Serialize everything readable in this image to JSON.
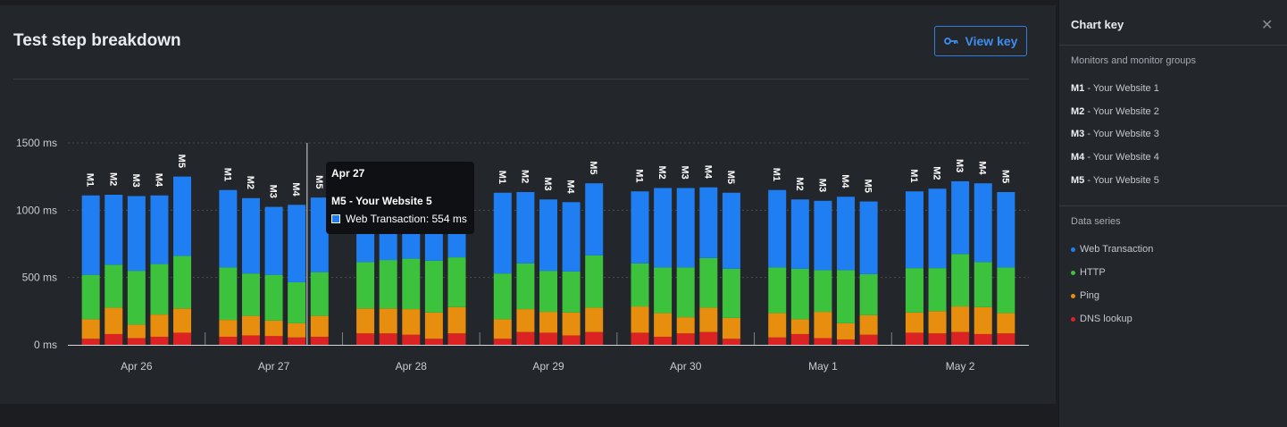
{
  "header": {
    "title": "Test step breakdown",
    "view_key_label": "View key"
  },
  "tooltip": {
    "date": "Apr 27",
    "monitor": "M5 - Your Website 5",
    "series_label": "Web Transaction: 554 ms"
  },
  "key_panel": {
    "title": "Chart key",
    "monitors_heading": "Monitors and monitor groups",
    "monitors": [
      {
        "code": "M1",
        "name": " - Your Website 1"
      },
      {
        "code": "M2",
        "name": " - Your Website 2"
      },
      {
        "code": "M3",
        "name": " - Your Website 3"
      },
      {
        "code": "M4",
        "name": " - Your Website 4"
      },
      {
        "code": "M5",
        "name": " - Your Website 5"
      }
    ],
    "series_heading": "Data series",
    "series": [
      {
        "name": "Web Transaction",
        "color": "#1f7ff2"
      },
      {
        "name": "HTTP",
        "color": "#3dc23d"
      },
      {
        "name": "Ping",
        "color": "#e88e0e"
      },
      {
        "name": "DNS lookup",
        "color": "#dc2323"
      }
    ]
  },
  "chart_data": {
    "type": "bar",
    "stacked": true,
    "ylim": [
      0,
      1500
    ],
    "y_ticks": [
      {
        "value": 0,
        "label": "0 ms"
      },
      {
        "value": 500,
        "label": "500 ms"
      },
      {
        "value": 1000,
        "label": "1000 ms"
      },
      {
        "value": 1500,
        "label": "1500 ms"
      }
    ],
    "grid": true,
    "categories": [
      "Apr 26",
      "Apr 27",
      "Apr 28",
      "Apr 29",
      "Apr 30",
      "May 1",
      "May 2"
    ],
    "monitors": [
      "M1",
      "M2",
      "M3",
      "M4",
      "M5"
    ],
    "series_colors": {
      "DNS lookup": "#dc2323",
      "Ping": "#e88e0e",
      "HTTP": "#3dc23d",
      "Web Transaction": "#1f7ff2"
    },
    "series_order": [
      "DNS lookup",
      "Ping",
      "HTTP",
      "Web Transaction"
    ],
    "groups": [
      {
        "date": "Apr 26",
        "bars": [
          {
            "monitor": "M1",
            "DNS lookup": 45,
            "Ping": 145,
            "HTTP": 330,
            "Web Transaction": 590
          },
          {
            "monitor": "M2",
            "DNS lookup": 80,
            "Ping": 195,
            "HTTP": 320,
            "Web Transaction": 520
          },
          {
            "monitor": "M3",
            "DNS lookup": 50,
            "Ping": 100,
            "HTTP": 400,
            "Web Transaction": 555
          },
          {
            "monitor": "M4",
            "DNS lookup": 60,
            "Ping": 165,
            "HTTP": 375,
            "Web Transaction": 510
          },
          {
            "monitor": "M5",
            "DNS lookup": 90,
            "Ping": 180,
            "HTTP": 390,
            "Web Transaction": 590
          }
        ]
      },
      {
        "date": "Apr 27",
        "bars": [
          {
            "monitor": "M1",
            "DNS lookup": 60,
            "Ping": 125,
            "HTTP": 390,
            "Web Transaction": 575
          },
          {
            "monitor": "M2",
            "DNS lookup": 70,
            "Ping": 145,
            "HTTP": 315,
            "Web Transaction": 560
          },
          {
            "monitor": "M3",
            "DNS lookup": 65,
            "Ping": 115,
            "HTTP": 340,
            "Web Transaction": 505
          },
          {
            "monitor": "M4",
            "DNS lookup": 55,
            "Ping": 105,
            "HTTP": 305,
            "Web Transaction": 575
          },
          {
            "monitor": "M5",
            "DNS lookup": 60,
            "Ping": 155,
            "HTTP": 325,
            "Web Transaction": 554
          }
        ]
      },
      {
        "date": "Apr 28",
        "bars": [
          {
            "monitor": "M1",
            "DNS lookup": 85,
            "Ping": 185,
            "HTTP": 345,
            "Web Transaction": 585
          },
          {
            "monitor": "M2",
            "DNS lookup": 85,
            "Ping": 185,
            "HTTP": 360,
            "Web Transaction": 570
          },
          {
            "monitor": "M3",
            "DNS lookup": 75,
            "Ping": 190,
            "HTTP": 375,
            "Web Transaction": 560
          },
          {
            "monitor": "M4",
            "DNS lookup": 45,
            "Ping": 195,
            "HTTP": 385,
            "Web Transaction": 575
          },
          {
            "monitor": "M5",
            "DNS lookup": 85,
            "Ping": 195,
            "HTTP": 370,
            "Web Transaction": 550
          }
        ]
      },
      {
        "date": "Apr 29",
        "bars": [
          {
            "monitor": "M1",
            "DNS lookup": 45,
            "Ping": 145,
            "HTTP": 340,
            "Web Transaction": 600
          },
          {
            "monitor": "M2",
            "DNS lookup": 95,
            "Ping": 170,
            "HTTP": 340,
            "Web Transaction": 530
          },
          {
            "monitor": "M3",
            "DNS lookup": 90,
            "Ping": 155,
            "HTTP": 305,
            "Web Transaction": 530
          },
          {
            "monitor": "M4",
            "DNS lookup": 70,
            "Ping": 170,
            "HTTP": 305,
            "Web Transaction": 515
          },
          {
            "monitor": "M5",
            "DNS lookup": 95,
            "Ping": 180,
            "HTTP": 390,
            "Web Transaction": 535
          }
        ]
      },
      {
        "date": "Apr 30",
        "bars": [
          {
            "monitor": "M1",
            "DNS lookup": 90,
            "Ping": 195,
            "HTTP": 320,
            "Web Transaction": 535
          },
          {
            "monitor": "M2",
            "DNS lookup": 60,
            "Ping": 175,
            "HTTP": 340,
            "Web Transaction": 590
          },
          {
            "monitor": "M3",
            "DNS lookup": 85,
            "Ping": 120,
            "HTTP": 370,
            "Web Transaction": 590
          },
          {
            "monitor": "M4",
            "DNS lookup": 95,
            "Ping": 180,
            "HTTP": 370,
            "Web Transaction": 525
          },
          {
            "monitor": "M5",
            "DNS lookup": 45,
            "Ping": 155,
            "HTTP": 365,
            "Web Transaction": 565
          }
        ]
      },
      {
        "date": "May 1",
        "bars": [
          {
            "monitor": "M1",
            "DNS lookup": 55,
            "Ping": 180,
            "HTTP": 340,
            "Web Transaction": 575
          },
          {
            "monitor": "M2",
            "DNS lookup": 80,
            "Ping": 110,
            "HTTP": 375,
            "Web Transaction": 515
          },
          {
            "monitor": "M3",
            "DNS lookup": 50,
            "Ping": 195,
            "HTTP": 310,
            "Web Transaction": 515
          },
          {
            "monitor": "M4",
            "DNS lookup": 40,
            "Ping": 120,
            "HTTP": 395,
            "Web Transaction": 545
          },
          {
            "monitor": "M5",
            "DNS lookup": 75,
            "Ping": 145,
            "HTTP": 305,
            "Web Transaction": 540
          }
        ]
      },
      {
        "date": "May 2",
        "bars": [
          {
            "monitor": "M1",
            "DNS lookup": 90,
            "Ping": 150,
            "HTTP": 330,
            "Web Transaction": 570
          },
          {
            "monitor": "M2",
            "DNS lookup": 85,
            "Ping": 165,
            "HTTP": 320,
            "Web Transaction": 590
          },
          {
            "monitor": "M3",
            "DNS lookup": 95,
            "Ping": 190,
            "HTTP": 390,
            "Web Transaction": 540
          },
          {
            "monitor": "M4",
            "DNS lookup": 80,
            "Ping": 200,
            "HTTP": 335,
            "Web Transaction": 585
          },
          {
            "monitor": "M5",
            "DNS lookup": 85,
            "Ping": 150,
            "HTTP": 340,
            "Web Transaction": 560
          }
        ]
      }
    ]
  }
}
